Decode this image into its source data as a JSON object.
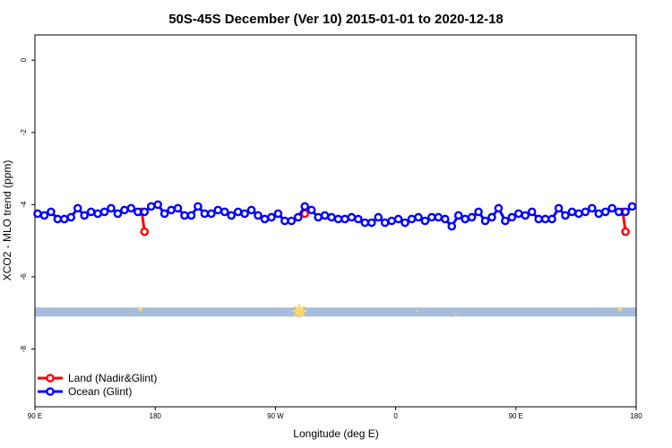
{
  "chart_data": {
    "type": "line",
    "title": "50S-45S December (Ver 10)   2015-01-01 to 2020-12-18",
    "xlabel": "Longitude (deg E)",
    "ylabel": "XCO2 - MLO trend (ppm)",
    "xlim": [
      90,
      540
    ],
    "ylim": [
      -9.6,
      0.7
    ],
    "x_ticks": [
      {
        "value": 90,
        "label": "90 E"
      },
      {
        "value": 180,
        "label": "180"
      },
      {
        "value": 270,
        "label": "90 W"
      },
      {
        "value": 360,
        "label": "0"
      },
      {
        "value": 450,
        "label": "90 E"
      },
      {
        "value": 540,
        "label": "180"
      }
    ],
    "y_ticks": [
      {
        "value": 0,
        "label": "0"
      },
      {
        "value": -2,
        "label": "-2"
      },
      {
        "value": -4,
        "label": "-4"
      },
      {
        "value": -6,
        "label": "-6"
      },
      {
        "value": -8,
        "label": "-8"
      }
    ],
    "land_band": {
      "y_range": [
        -7.1,
        -6.85
      ],
      "color": "#a7bedb",
      "markers": [
        {
          "x": 169,
          "y": -6.9,
          "size": 2
        },
        {
          "x": 288,
          "y": -6.95,
          "size": 5
        },
        {
          "x": 376,
          "y": -6.95,
          "size": 1
        },
        {
          "x": 405,
          "y": -7.05,
          "size": 1
        },
        {
          "x": 528,
          "y": -6.9,
          "size": 2
        }
      ],
      "marker_color": "#ffd966"
    },
    "series": [
      {
        "name": "Land (Nadir&Glint)",
        "color": "#ff0000",
        "segments": [
          [
            [
              170,
              -4.2
            ],
            [
              172,
              -4.75
            ]
          ],
          [
            [
              287,
              -4.35
            ],
            [
              292,
              -4.25
            ]
          ],
          [
            [
              530,
              -4.2
            ],
            [
              532,
              -4.75
            ]
          ]
        ]
      },
      {
        "name": "Ocean (Glint)",
        "color": "#0000ff",
        "x": [
          92,
          97,
          102,
          107,
          112,
          117,
          122,
          127,
          132,
          137,
          142,
          147,
          152,
          157,
          162,
          167,
          172,
          177,
          182,
          187,
          192,
          197,
          202,
          207,
          212,
          217,
          222,
          227,
          232,
          237,
          242,
          247,
          252,
          257,
          262,
          267,
          272,
          277,
          282,
          287,
          292,
          297,
          302,
          307,
          312,
          317,
          322,
          327,
          332,
          337,
          342,
          347,
          352,
          357,
          362,
          367,
          372,
          377,
          382,
          387,
          392,
          397,
          402,
          407,
          412,
          417,
          422,
          427,
          432,
          437,
          442,
          447,
          452,
          457,
          462,
          467,
          472,
          477,
          482,
          487,
          492,
          497,
          502,
          507,
          512,
          517,
          522,
          527,
          532,
          537
        ],
        "values": [
          -4.25,
          -4.3,
          -4.2,
          -4.4,
          -4.4,
          -4.35,
          -4.1,
          -4.3,
          -4.2,
          -4.25,
          -4.2,
          -4.1,
          -4.25,
          -4.15,
          -4.1,
          -4.2,
          -4.2,
          -4.05,
          -4.0,
          -4.25,
          -4.15,
          -4.1,
          -4.3,
          -4.3,
          -4.05,
          -4.25,
          -4.25,
          -4.15,
          -4.2,
          -4.3,
          -4.2,
          -4.25,
          -4.15,
          -4.3,
          -4.4,
          -4.35,
          -4.25,
          -4.45,
          -4.45,
          -4.35,
          -4.05,
          -4.15,
          -4.35,
          -4.3,
          -4.35,
          -4.4,
          -4.4,
          -4.35,
          -4.4,
          -4.5,
          -4.5,
          -4.35,
          -4.5,
          -4.45,
          -4.4,
          -4.5,
          -4.4,
          -4.35,
          -4.45,
          -4.35,
          -4.35,
          -4.4,
          -4.6,
          -4.3,
          -4.4,
          -4.35,
          -4.2,
          -4.45,
          -4.35,
          -4.1,
          -4.45,
          -4.35,
          -4.25,
          -4.3,
          -4.2,
          -4.4,
          -4.4,
          -4.4,
          -4.1,
          -4.3,
          -4.2,
          -4.25,
          -4.2,
          -4.1,
          -4.25,
          -4.2,
          -4.1,
          -4.2,
          -4.2,
          -4.05
        ]
      }
    ],
    "legend": {
      "position": "bottom-left",
      "entries": [
        "Land (Nadir&Glint)",
        "Ocean (Glint)"
      ]
    }
  }
}
